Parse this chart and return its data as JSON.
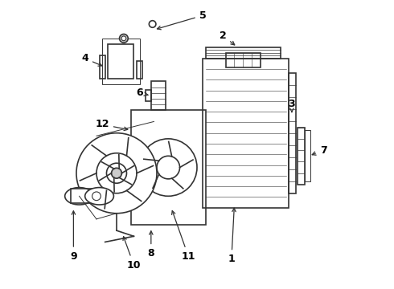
{
  "background_color": "#ffffff",
  "line_color": "#333333",
  "label_color": "#000000",
  "labels": {
    "1": [
      0.62,
      0.1,
      0.63,
      0.29
    ],
    "2": [
      0.59,
      0.88,
      0.64,
      0.84
    ],
    "3": [
      0.83,
      0.64,
      0.83,
      0.61
    ],
    "4": [
      0.11,
      0.8,
      0.18,
      0.77
    ],
    "5": [
      0.52,
      0.95,
      0.35,
      0.9
    ],
    "6": [
      0.3,
      0.68,
      0.34,
      0.67
    ],
    "7": [
      0.94,
      0.48,
      0.89,
      0.46
    ],
    "8": [
      0.34,
      0.12,
      0.34,
      0.21
    ],
    "9": [
      0.07,
      0.11,
      0.07,
      0.28
    ],
    "10": [
      0.28,
      0.08,
      0.24,
      0.19
    ],
    "11": [
      0.47,
      0.11,
      0.41,
      0.28
    ],
    "12": [
      0.17,
      0.57,
      0.27,
      0.55
    ]
  },
  "fig_width": 4.9,
  "fig_height": 3.6,
  "dpi": 100
}
